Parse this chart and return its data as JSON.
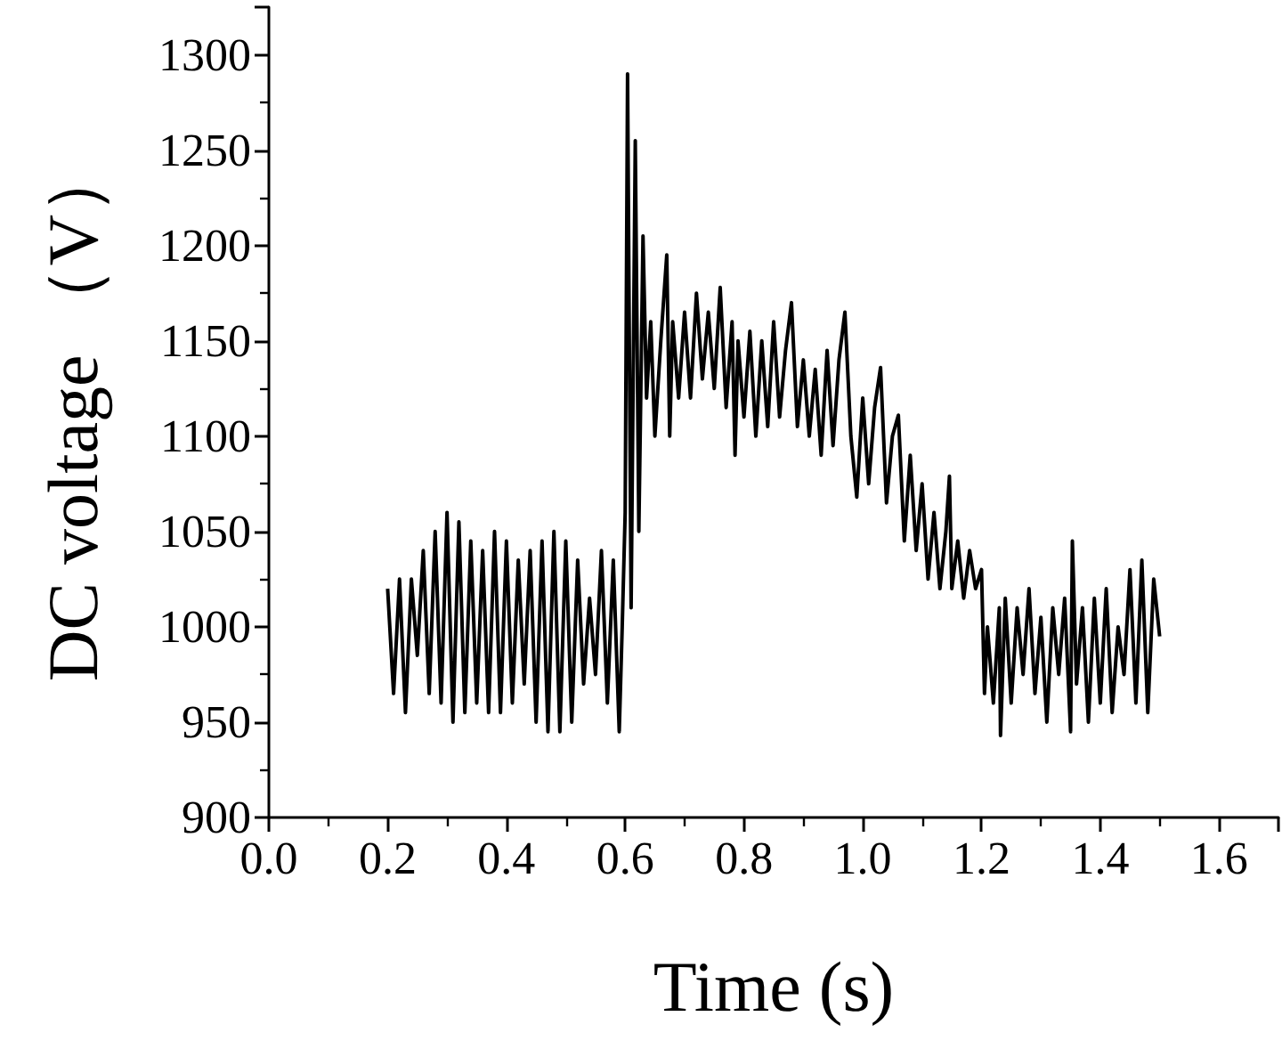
{
  "chart_data": {
    "type": "line",
    "xlabel": "Time (s)",
    "ylabel": "DC voltage （V）",
    "xlim": [
      0,
      1.7
    ],
    "ylim": [
      900,
      1325
    ],
    "xticks": [
      {
        "value": 0,
        "label": "0.0"
      },
      {
        "value": 0.2,
        "label": "0.2"
      },
      {
        "value": 0.4,
        "label": "0.4"
      },
      {
        "value": 0.6,
        "label": "0.6"
      },
      {
        "value": 0.8,
        "label": "0.8"
      },
      {
        "value": 1,
        "label": "1.0"
      },
      {
        "value": 1.2,
        "label": "1.2"
      },
      {
        "value": 1.4,
        "label": "1.4"
      },
      {
        "value": 1.6,
        "label": "1.6"
      }
    ],
    "yticks": [
      900,
      950,
      1000,
      1050,
      1100,
      1150,
      1200,
      1250,
      1300
    ],
    "marker": "none",
    "line_style": "solid",
    "x": [
      0.2,
      0.21,
      0.22,
      0.23,
      0.24,
      0.25,
      0.26,
      0.27,
      0.28,
      0.29,
      0.3,
      0.31,
      0.32,
      0.33,
      0.34,
      0.35,
      0.36,
      0.37,
      0.38,
      0.39,
      0.4,
      0.41,
      0.42,
      0.43,
      0.44,
      0.45,
      0.46,
      0.47,
      0.48,
      0.49,
      0.5,
      0.51,
      0.52,
      0.53,
      0.54,
      0.55,
      0.56,
      0.57,
      0.58,
      0.59,
      0.595,
      0.6,
      0.604,
      0.61,
      0.617,
      0.623,
      0.63,
      0.636,
      0.643,
      0.65,
      0.66,
      0.67,
      0.675,
      0.68,
      0.69,
      0.7,
      0.71,
      0.72,
      0.73,
      0.74,
      0.75,
      0.76,
      0.77,
      0.78,
      0.785,
      0.79,
      0.8,
      0.81,
      0.82,
      0.83,
      0.84,
      0.85,
      0.86,
      0.87,
      0.88,
      0.89,
      0.9,
      0.91,
      0.92,
      0.93,
      0.94,
      0.95,
      0.96,
      0.97,
      0.98,
      0.99,
      1,
      1.01,
      1.02,
      1.03,
      1.04,
      1.05,
      1.06,
      1.07,
      1.08,
      1.09,
      1.1,
      1.11,
      1.12,
      1.13,
      1.14,
      1.146,
      1.15,
      1.16,
      1.17,
      1.18,
      1.19,
      1.2,
      1.205,
      1.21,
      1.22,
      1.23,
      1.232,
      1.24,
      1.25,
      1.26,
      1.27,
      1.28,
      1.29,
      1.3,
      1.31,
      1.32,
      1.33,
      1.34,
      1.35,
      1.353,
      1.36,
      1.37,
      1.38,
      1.39,
      1.4,
      1.41,
      1.42,
      1.43,
      1.44,
      1.45,
      1.46,
      1.47,
      1.48,
      1.49,
      1.5
    ],
    "series": [
      {
        "color": "#000000",
        "values": [
          1020,
          965,
          1025,
          955,
          1025,
          985,
          1040,
          965,
          1050,
          960,
          1060,
          950,
          1055,
          955,
          1045,
          960,
          1040,
          955,
          1050,
          955,
          1045,
          960,
          1035,
          970,
          1040,
          950,
          1045,
          945,
          1050,
          945,
          1045,
          950,
          1035,
          970,
          1015,
          975,
          1040,
          960,
          1035,
          945,
          1000,
          1060,
          1290,
          1010,
          1255,
          1050,
          1205,
          1120,
          1160,
          1100,
          1150,
          1195,
          1100,
          1160,
          1120,
          1165,
          1120,
          1175,
          1130,
          1165,
          1125,
          1178,
          1115,
          1160,
          1090,
          1150,
          1110,
          1155,
          1100,
          1150,
          1105,
          1160,
          1110,
          1145,
          1170,
          1105,
          1140,
          1100,
          1135,
          1090,
          1145,
          1095,
          1140,
          1165,
          1100,
          1068,
          1120,
          1075,
          1115,
          1136,
          1065,
          1100,
          1111,
          1045,
          1090,
          1040,
          1075,
          1025,
          1060,
          1020,
          1050,
          1079,
          1020,
          1045,
          1015,
          1040,
          1020,
          1030,
          965,
          1000,
          960,
          1010,
          943,
          1015,
          960,
          1010,
          975,
          1020,
          965,
          1005,
          950,
          1010,
          975,
          1015,
          945,
          1045,
          970,
          1010,
          950,
          1015,
          960,
          1020,
          955,
          1000,
          975,
          1030,
          960,
          1035,
          955,
          1025,
          995
        ]
      }
    ]
  }
}
